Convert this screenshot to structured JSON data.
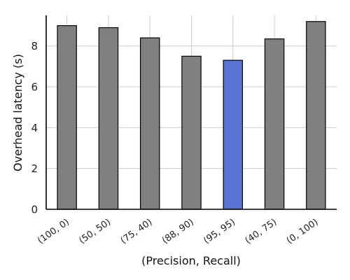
{
  "chart_data": {
    "type": "bar",
    "categories": [
      "(100, 0)",
      "(50, 50)",
      "(75, 40)",
      "(88, 90)",
      "(95, 95)",
      "(40, 75)",
      "(0, 100)"
    ],
    "values": [
      9.0,
      8.9,
      8.4,
      7.5,
      7.3,
      8.35,
      9.2
    ],
    "highlight_index": 4,
    "xlabel": "(Precision, Recall)",
    "ylabel": "Overhead latency (s)",
    "ylim": [
      0,
      9.5
    ],
    "yticks": [
      0,
      2,
      4,
      6,
      8
    ],
    "grid": true,
    "colors": {
      "bar": "#808080",
      "highlight": "#5a73d3",
      "edge": "#000000",
      "grid": "#cccccc"
    }
  }
}
